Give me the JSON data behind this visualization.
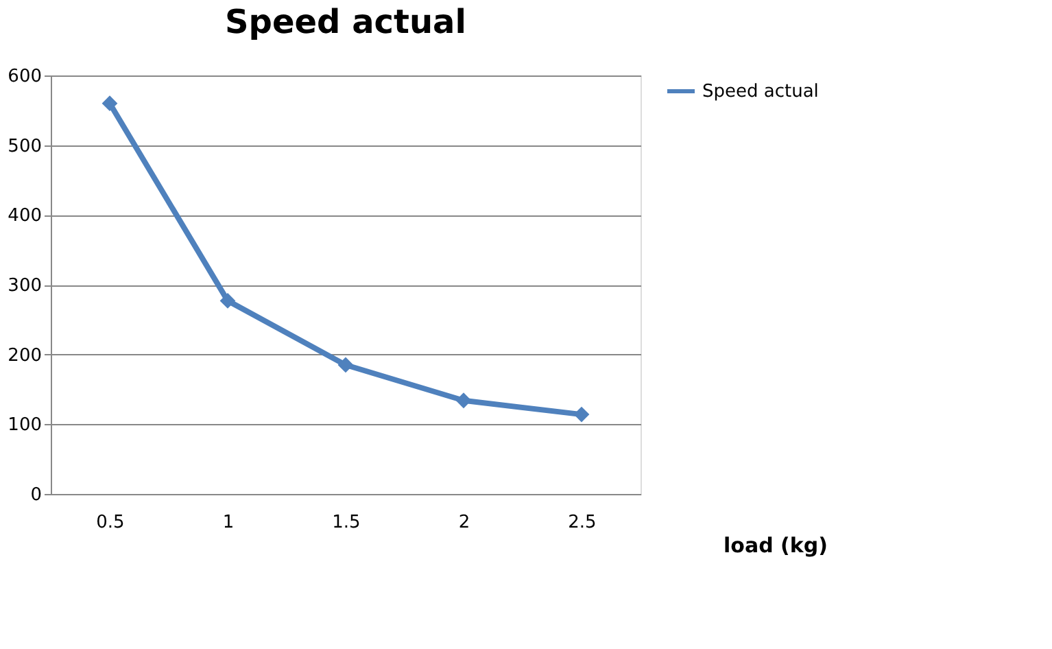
{
  "chart_data": {
    "type": "line",
    "title": "Speed actual",
    "xlabel": "load (kg)",
    "categories": [
      "0.5",
      "1",
      "1.5",
      "2",
      "2.5"
    ],
    "series": [
      {
        "name": "Speed actual",
        "color": "#4f81bd",
        "values": [
          560,
          277,
          185,
          134,
          114
        ]
      }
    ],
    "ylim": [
      0,
      600
    ],
    "yticks": [
      0,
      100,
      200,
      300,
      400,
      500,
      600
    ],
    "grid": "y",
    "legend": "right",
    "marker": "diamond",
    "line_style": "solid"
  }
}
